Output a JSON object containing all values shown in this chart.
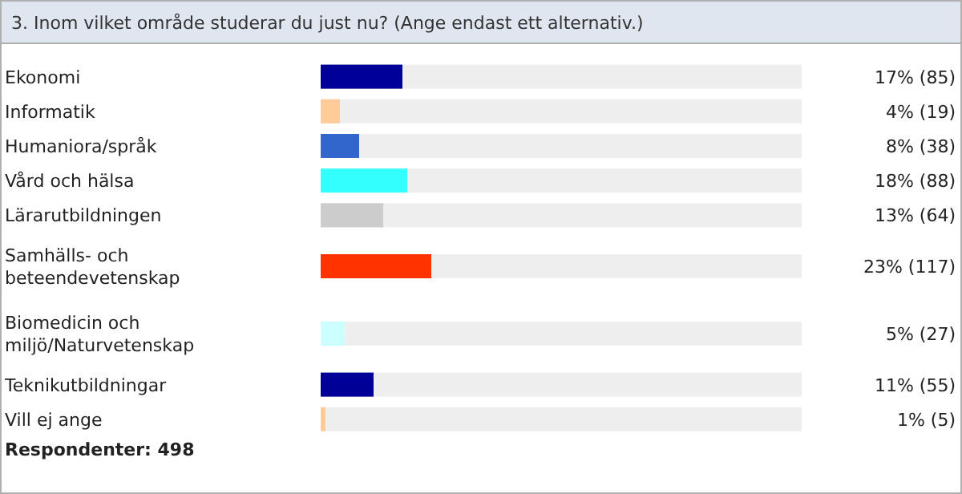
{
  "chart_data": {
    "type": "bar",
    "orientation": "horizontal",
    "title": "3. Inom vilket område studerar du just nu? (Ange endast ett alternativ.)",
    "categories": [
      "Ekonomi",
      "Informatik",
      "Humaniora/språk",
      "Vård och hälsa",
      "Lärarutbildningen",
      "Samhälls- och beteendevetenskap",
      "Biomedicin och miljö/Naturvetenskap",
      "Teknikutbildningar",
      "Vill ej ange"
    ],
    "values": [
      17,
      4,
      8,
      18,
      13,
      23,
      5,
      11,
      1
    ],
    "colors": [
      "#000099",
      "#ffcc99",
      "#3366cc",
      "#33ffff",
      "#cccccc",
      "#ff3300",
      "#ccffff",
      "#000099",
      "#ffcc99"
    ],
    "value_labels": [
      "17% (85)",
      "4% (19)",
      "8% (38)",
      "18% (88)",
      "13% (64)",
      "23% (117)",
      "5% (27)",
      "11% (55)",
      "1% (5)"
    ],
    "xlim": [
      0,
      100
    ],
    "annotations": [
      "Respondenter: 498"
    ]
  }
}
